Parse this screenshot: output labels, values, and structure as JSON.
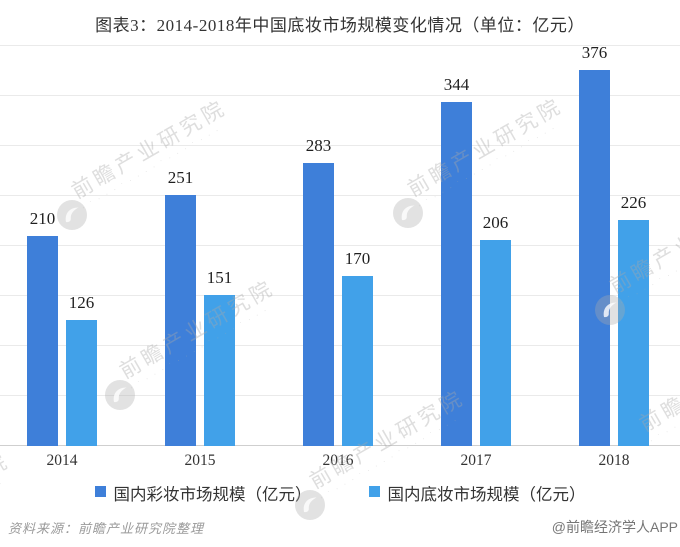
{
  "title": "图表3：2014-2018年中国底妆市场规模变化情况（单位：亿元）",
  "chart_data": {
    "type": "bar",
    "categories": [
      "2014",
      "2015",
      "2016",
      "2017",
      "2018"
    ],
    "series": [
      {
        "name": "国内彩妆市场规模（亿元）",
        "color": "#3E7FD9",
        "values": [
          210,
          251,
          283,
          344,
          376
        ]
      },
      {
        "name": "国内底妆市场规模（亿元）",
        "color": "#41A1E9",
        "values": [
          126,
          151,
          170,
          206,
          226
        ]
      }
    ],
    "ylim": [
      0,
      400
    ],
    "gridline_step": 50,
    "grid": true,
    "y_axis_labels_visible": false,
    "data_labels": true,
    "legend_position": "bottom",
    "xlabel": "",
    "ylabel": ""
  },
  "footer": {
    "source": "资料来源：前瞻产业研究院整理",
    "credit": "@前瞻经济学人APP"
  },
  "watermark": {
    "text": "前瞻产业研究院",
    "subtext": "· ˙ · · · ˙ · · · · ˙ · · · ˙ · · ·"
  },
  "colors": {
    "series1": "#3E7FD9",
    "series2": "#41A1E9",
    "gridline": "#EAEAEA",
    "axis_line": "#CFCFCF",
    "title_text": "#333333",
    "value_label_text": "#1F1F1F",
    "footer_source_text": "#9A9A9A",
    "footer_credit_text": "#757575",
    "watermark_gray": "#E3E3E3",
    "background": "#FFFFFF"
  }
}
